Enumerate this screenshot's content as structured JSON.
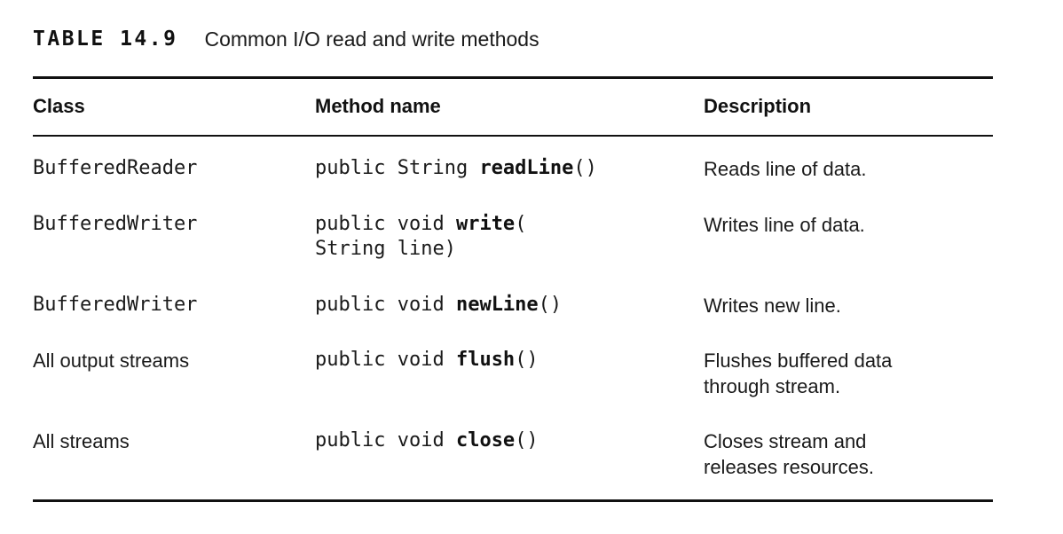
{
  "caption": {
    "label": "TABLE 14.9",
    "title": "Common I/O read and write methods"
  },
  "table": {
    "headers": [
      "Class",
      "Method name",
      "Description"
    ],
    "rows": [
      {
        "class": "BufferedReader",
        "method": {
          "prefix": "public String ",
          "name": "readLine",
          "suffix": "()",
          "line2": ""
        },
        "description": [
          "Reads line of data."
        ]
      },
      {
        "class": "BufferedWriter",
        "method": {
          "prefix": "public void ",
          "name": "write",
          "suffix": "(",
          "line2": "String line)"
        },
        "description": [
          "Writes line of data."
        ]
      },
      {
        "class": "BufferedWriter",
        "method": {
          "prefix": "public void ",
          "name": "newLine",
          "suffix": "()",
          "line2": ""
        },
        "description": [
          "Writes new line."
        ]
      },
      {
        "class": "All output streams",
        "method": {
          "prefix": "public void ",
          "name": "flush",
          "suffix": "()",
          "line2": ""
        },
        "description": [
          "Flushes buffered data",
          "through stream."
        ]
      },
      {
        "class": "All streams",
        "method": {
          "prefix": "public void ",
          "name": "close",
          "suffix": "()",
          "line2": ""
        },
        "description": [
          "Closes stream and",
          "releases resources."
        ]
      }
    ]
  }
}
